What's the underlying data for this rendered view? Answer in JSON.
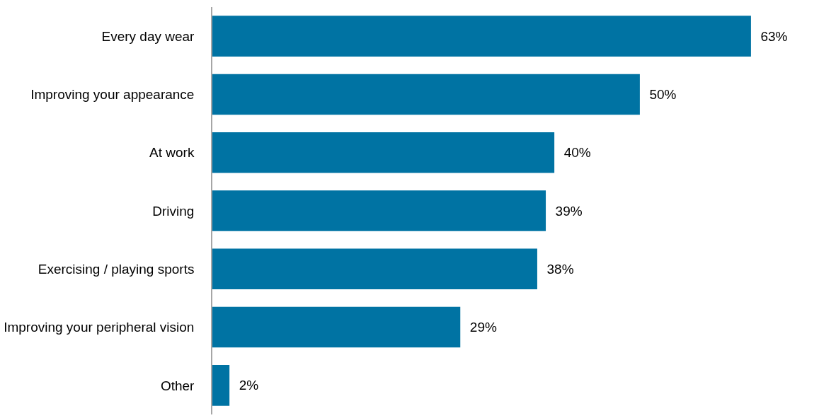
{
  "chart_data": {
    "type": "bar",
    "orientation": "horizontal",
    "categories": [
      "Every day wear",
      "Improving your appearance",
      "At work",
      "Driving",
      "Exercising / playing sports",
      "Improving your peripheral vision",
      "Other"
    ],
    "values": [
      63,
      50,
      40,
      39,
      38,
      29,
      2
    ],
    "value_labels": [
      "63%",
      "50%",
      "40%",
      "39%",
      "38%",
      "29%",
      "2%"
    ],
    "color": "#0073a3"
  }
}
